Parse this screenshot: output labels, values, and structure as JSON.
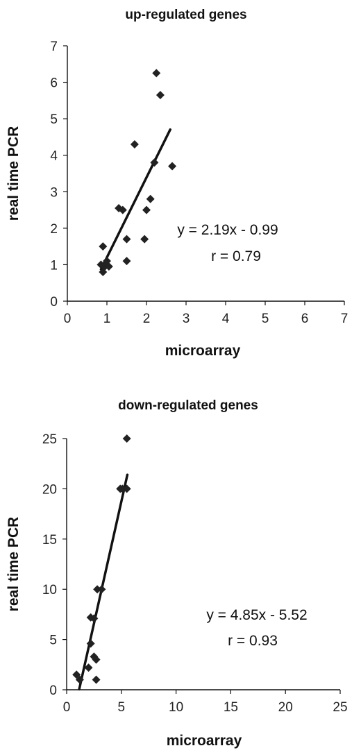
{
  "chart_data": [
    {
      "type": "scatter",
      "title": "up-regulated genes",
      "xlabel": "microarray",
      "ylabel": "real time PCR",
      "xlim": [
        0,
        7
      ],
      "ylim": [
        0,
        7
      ],
      "xticks": [
        "0",
        "1",
        "2",
        "3",
        "4",
        "5",
        "6",
        "7"
      ],
      "yticks": [
        "0",
        "1",
        "2",
        "3",
        "4",
        "5",
        "6",
        "7"
      ],
      "grid": false,
      "points": [
        {
          "x": 0.85,
          "y": 1.0
        },
        {
          "x": 0.9,
          "y": 1.5
        },
        {
          "x": 0.9,
          "y": 0.8
        },
        {
          "x": 0.95,
          "y": 0.95
        },
        {
          "x": 1.0,
          "y": 1.1
        },
        {
          "x": 1.05,
          "y": 0.95
        },
        {
          "x": 1.3,
          "y": 2.55
        },
        {
          "x": 1.4,
          "y": 2.5
        },
        {
          "x": 1.5,
          "y": 1.7
        },
        {
          "x": 1.5,
          "y": 1.1
        },
        {
          "x": 1.7,
          "y": 4.3
        },
        {
          "x": 1.95,
          "y": 1.7
        },
        {
          "x": 2.0,
          "y": 2.5
        },
        {
          "x": 2.1,
          "y": 2.8
        },
        {
          "x": 2.2,
          "y": 3.8
        },
        {
          "x": 2.25,
          "y": 6.25
        },
        {
          "x": 2.35,
          "y": 5.65
        },
        {
          "x": 2.65,
          "y": 3.7
        }
      ],
      "fit_line": {
        "x": [
          0.85,
          2.6
        ],
        "slope": 2.19,
        "intercept": -0.99
      },
      "equation": "y = 2.19x - 0.99",
      "r_label": "r = 0.79"
    },
    {
      "type": "scatter",
      "title": "down-regulated genes",
      "xlabel": "microarray",
      "ylabel": "real time PCR",
      "xlim": [
        0,
        25
      ],
      "ylim": [
        0,
        25
      ],
      "xticks": [
        "0",
        "5",
        "10",
        "15",
        "20",
        "25"
      ],
      "yticks": [
        "0",
        "5",
        "10",
        "15",
        "20",
        "25"
      ],
      "grid": false,
      "points": [
        {
          "x": 0.9,
          "y": 1.5
        },
        {
          "x": 1.2,
          "y": 1.0
        },
        {
          "x": 2.0,
          "y": 2.2
        },
        {
          "x": 2.2,
          "y": 4.6
        },
        {
          "x": 2.2,
          "y": 7.2
        },
        {
          "x": 2.5,
          "y": 7.1
        },
        {
          "x": 2.5,
          "y": 3.3
        },
        {
          "x": 2.7,
          "y": 3.0
        },
        {
          "x": 2.7,
          "y": 1.0
        },
        {
          "x": 2.8,
          "y": 10.0
        },
        {
          "x": 3.2,
          "y": 10.0
        },
        {
          "x": 4.9,
          "y": 20.0
        },
        {
          "x": 5.1,
          "y": 20.0
        },
        {
          "x": 5.5,
          "y": 20.0
        },
        {
          "x": 5.5,
          "y": 25.0
        }
      ],
      "fit_line": {
        "x": [
          1.15,
          5.55
        ],
        "slope": 4.85,
        "intercept": -5.52
      },
      "equation": "y = 4.85x - 5.52",
      "r_label": "r = 0.93"
    }
  ]
}
